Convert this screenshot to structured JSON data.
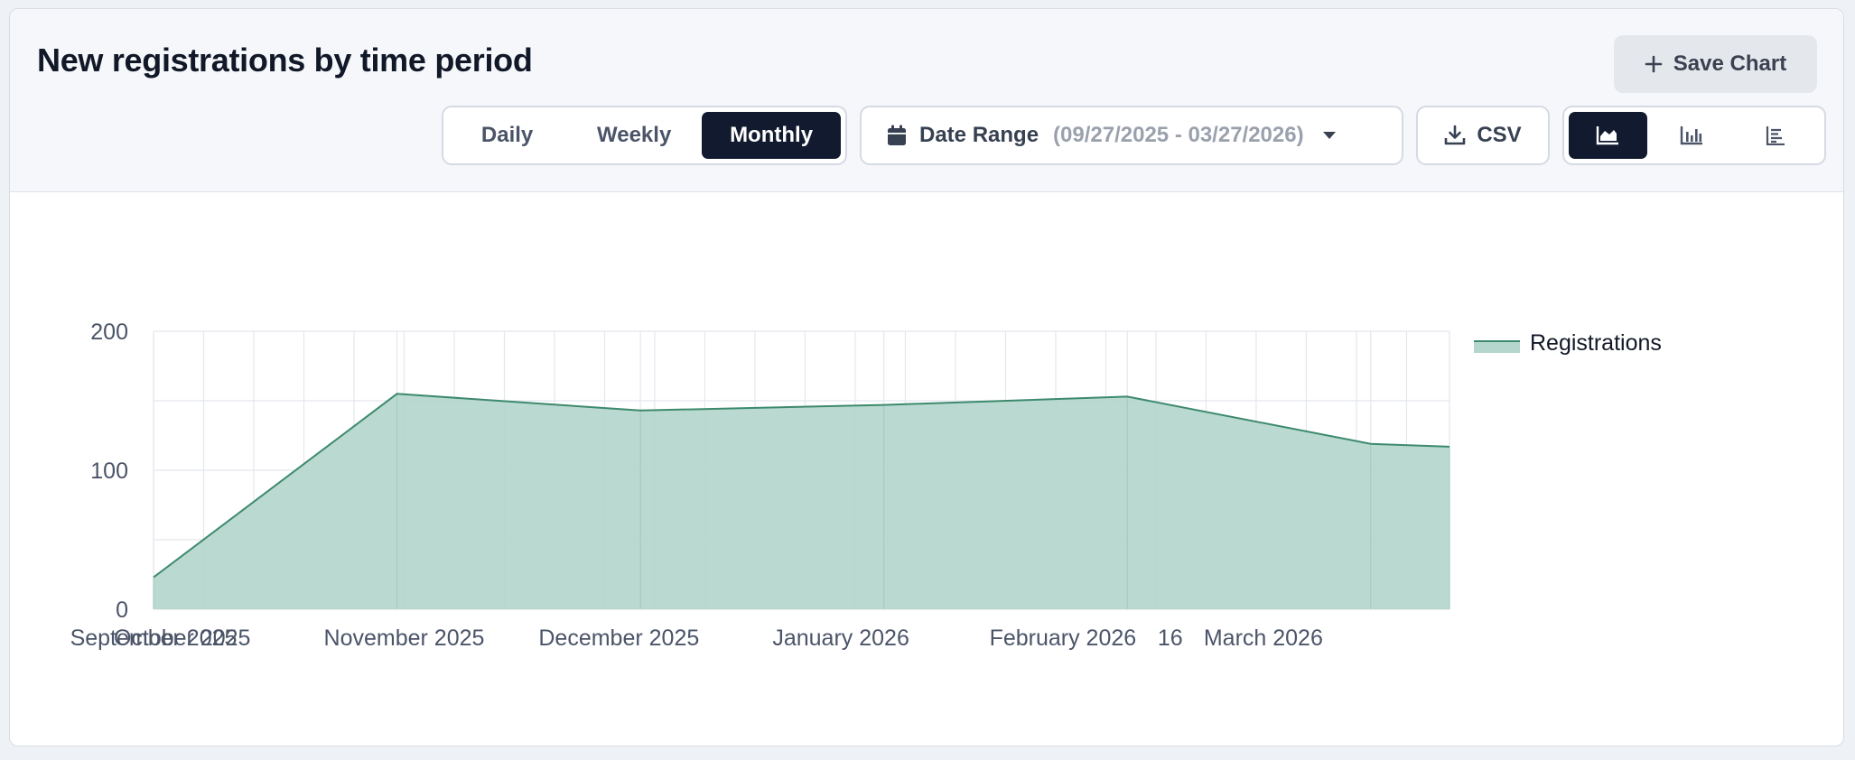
{
  "title": "New registrations by time period",
  "save_chart_label": "Save Chart",
  "period_toggle": [
    "Daily",
    "Weekly",
    "Monthly"
  ],
  "period_selected": "Monthly",
  "date_range": {
    "label": "Date Range",
    "value": "(09/27/2025 - 03/27/2026)"
  },
  "csv_label": "CSV",
  "chart_view_selected": "area",
  "colors": {
    "accent": "#111a2e",
    "series_line": "#3d8a6d",
    "series_fill": "#b4d6cc"
  },
  "chart_data": {
    "type": "area",
    "title": "",
    "xlabel": "",
    "ylabel": "",
    "ylim": [
      0,
      200
    ],
    "y_ticks": [
      0,
      100,
      200
    ],
    "x": [
      "2025-09-27",
      "2025-10-31",
      "2025-12-04",
      "2026-01-07",
      "2026-02-10",
      "2026-03-16",
      "2026-03-27"
    ],
    "x_tick_labels": [
      {
        "date": "2025-09-01",
        "label": "September 2025"
      },
      {
        "date": "2025-10-01",
        "label": "October 2025"
      },
      {
        "date": "2025-11-01",
        "label": "November 2025"
      },
      {
        "date": "2025-12-01",
        "label": "December 2025"
      },
      {
        "date": "2026-01-01",
        "label": "January 2026"
      },
      {
        "date": "2026-02-01",
        "label": "February 2026"
      },
      {
        "date": "2026-02-16",
        "label": "16"
      },
      {
        "date": "2026-03-01",
        "label": "March 2026"
      }
    ],
    "series": [
      {
        "name": "Registrations",
        "values": [
          23,
          155,
          143,
          147,
          153,
          119,
          117
        ]
      }
    ],
    "grid": true,
    "legend": "right"
  }
}
